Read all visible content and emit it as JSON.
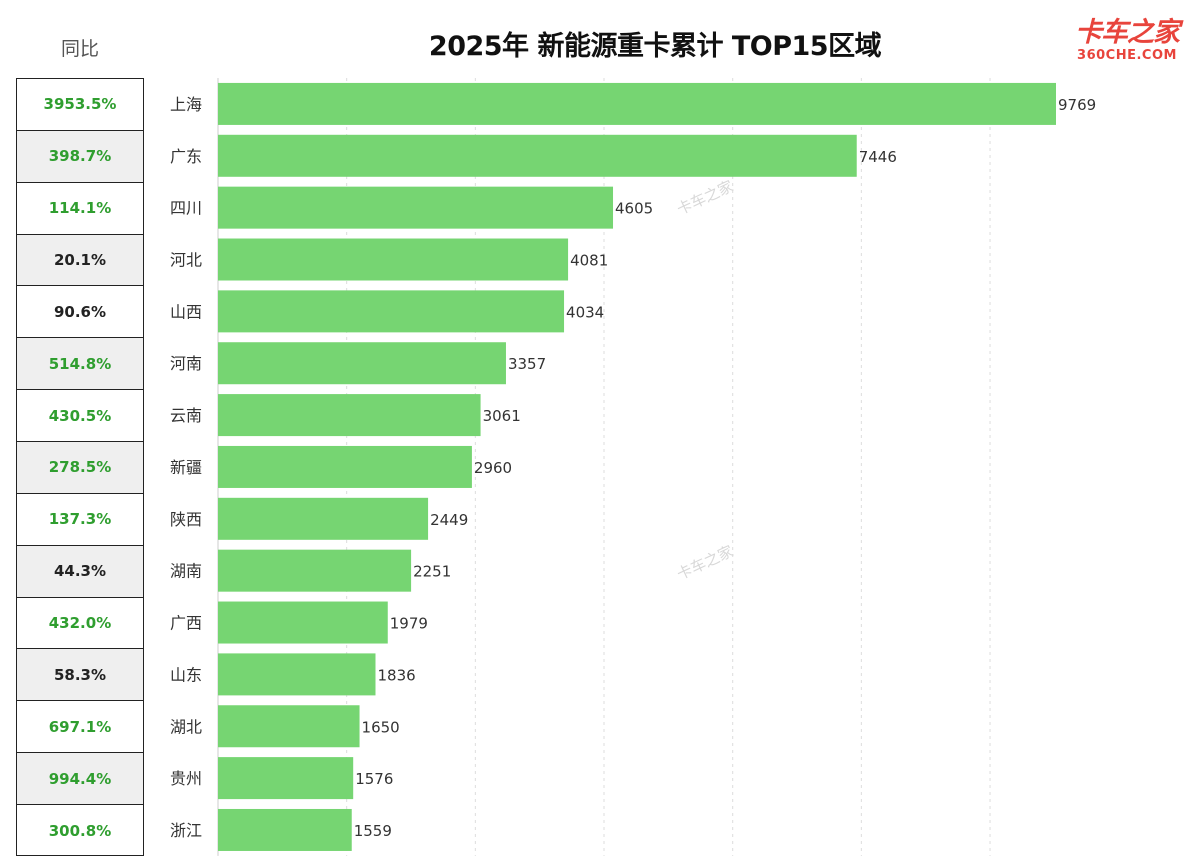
{
  "header": {
    "yoy_label": "同比",
    "title": "2025年 新能源重卡累计 TOP15区域",
    "logo_main": "卡车之家",
    "logo_sub": "360CHE.COM"
  },
  "watermark": "卡车之家",
  "colors": {
    "bar": "#76d572",
    "yoy_green": "#2f9e2f",
    "yoy_black": "#222222"
  },
  "chart_data": {
    "type": "bar",
    "orientation": "horizontal",
    "title": "2025年 新能源重卡累计 TOP15区域",
    "xlabel": "",
    "ylabel": "",
    "xlim": [
      0,
      10000
    ],
    "grid": "vertical-dashed",
    "categories": [
      "上海",
      "广东",
      "四川",
      "河北",
      "山西",
      "河南",
      "云南",
      "新疆",
      "陕西",
      "湖南",
      "广西",
      "山东",
      "湖北",
      "贵州",
      "浙江"
    ],
    "values": [
      9769,
      7446,
      4605,
      4081,
      4034,
      3357,
      3061,
      2960,
      2449,
      2251,
      1979,
      1836,
      1650,
      1576,
      1559
    ],
    "yoy": [
      "3953.5%",
      "398.7%",
      "114.1%",
      "20.1%",
      "90.6%",
      "514.8%",
      "430.5%",
      "278.5%",
      "137.3%",
      "44.3%",
      "432.0%",
      "58.3%",
      "697.1%",
      "994.4%",
      "300.8%"
    ],
    "yoy_highlight": [
      true,
      true,
      true,
      false,
      false,
      true,
      true,
      true,
      true,
      false,
      true,
      false,
      true,
      true,
      true
    ]
  }
}
